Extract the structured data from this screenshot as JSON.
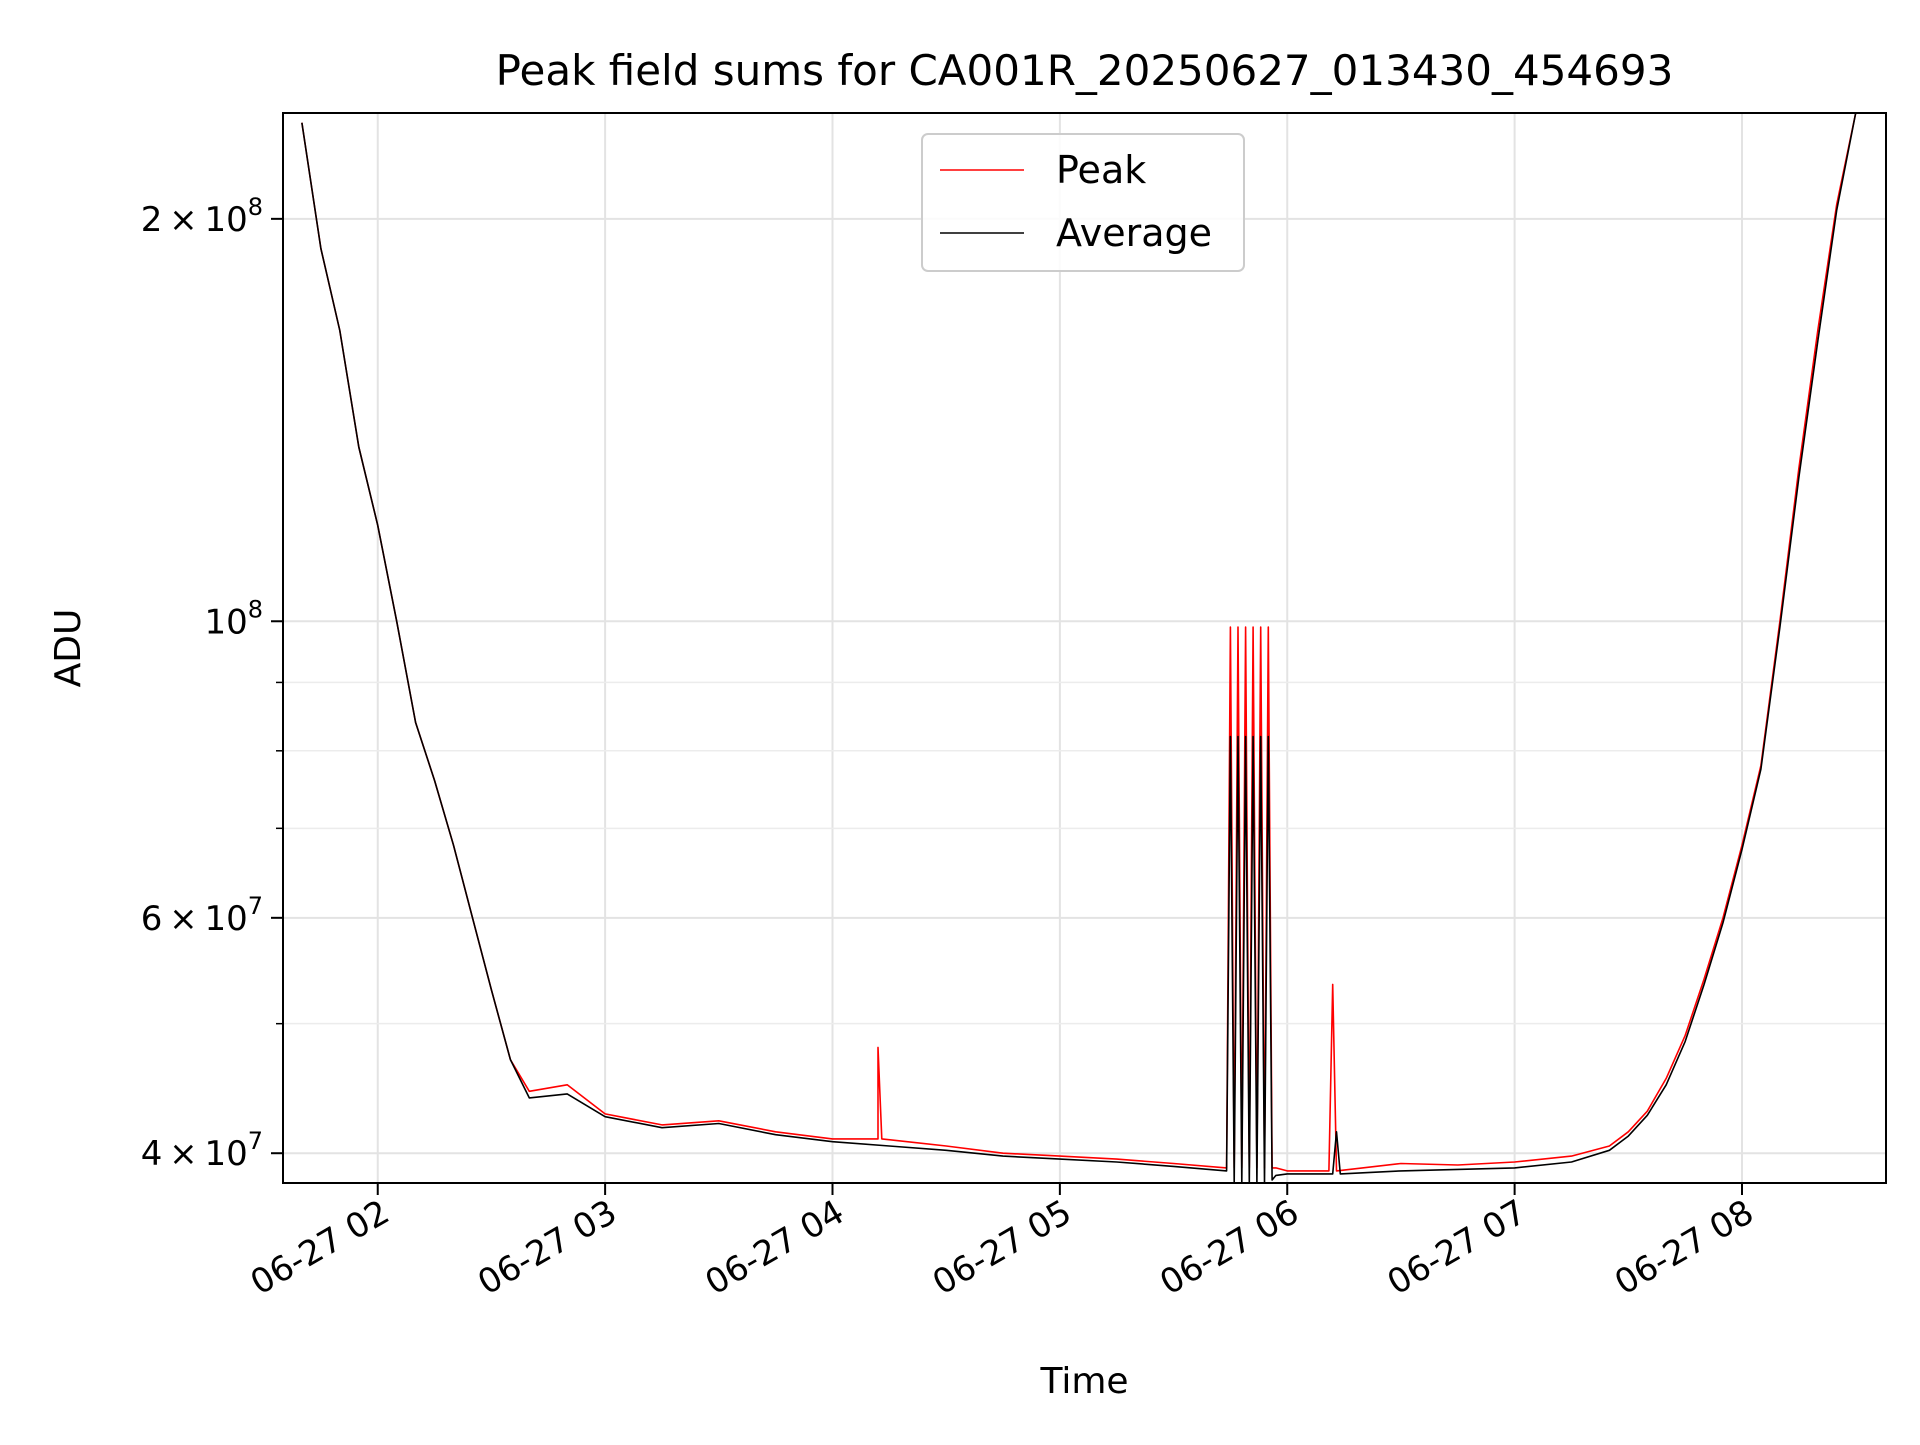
{
  "chart_data": {
    "type": "line",
    "title": "Peak field sums for CA001R_20250627_013430_454693",
    "xlabel": "Time",
    "ylabel": "ADU",
    "y_scale": "log",
    "ylim": [
      38000000,
      240000000
    ],
    "xlim": [
      "2025-06-27 01:35",
      "2025-06-27 08:38"
    ],
    "grid": true,
    "legend_position": "upper center",
    "x_ticks": [
      "06-27 02",
      "06-27 03",
      "06-27 04",
      "06-27 05",
      "06-27 06",
      "06-27 07",
      "06-27 08"
    ],
    "x_tick_times": [
      "2025-06-27 02:00",
      "2025-06-27 03:00",
      "2025-06-27 04:00",
      "2025-06-27 05:00",
      "2025-06-27 06:00",
      "2025-06-27 07:00",
      "2025-06-27 08:00"
    ],
    "y_major_ticks": [
      {
        "value": 200000000,
        "mantissa": "2",
        "exponent": "8"
      },
      {
        "value": 100000000,
        "mantissa": "",
        "exponent": "8"
      },
      {
        "value": 60000000,
        "mantissa": "6",
        "exponent": "7"
      },
      {
        "value": 40000000,
        "mantissa": "4",
        "exponent": "7"
      }
    ],
    "y_minor_ticks": [
      90000000,
      80000000,
      70000000,
      50000000
    ],
    "series": [
      {
        "name": "Peak",
        "color": "#ff0000",
        "x": [
          "2025-06-27 01:40",
          "2025-06-27 01:45",
          "2025-06-27 01:50",
          "2025-06-27 01:55",
          "2025-06-27 02:00",
          "2025-06-27 02:05",
          "2025-06-27 02:10",
          "2025-06-27 02:15",
          "2025-06-27 02:20",
          "2025-06-27 02:25",
          "2025-06-27 02:30",
          "2025-06-27 02:35",
          "2025-06-27 02:40",
          "2025-06-27 02:50",
          "2025-06-27 03:00",
          "2025-06-27 03:15",
          "2025-06-27 03:30",
          "2025-06-27 03:45",
          "2025-06-27 04:00",
          "2025-06-27 04:12",
          "2025-06-27 04:12",
          "2025-06-27 04:13",
          "2025-06-27 04:30",
          "2025-06-27 04:45",
          "2025-06-27 05:00",
          "2025-06-27 05:15",
          "2025-06-27 05:30",
          "2025-06-27 05:44",
          "2025-06-27 05:45",
          "2025-06-27 05:46",
          "2025-06-27 05:47",
          "2025-06-27 05:48",
          "2025-06-27 05:49",
          "2025-06-27 05:50",
          "2025-06-27 05:51",
          "2025-06-27 05:52",
          "2025-06-27 05:53",
          "2025-06-27 05:54",
          "2025-06-27 05:55",
          "2025-06-27 05:56",
          "2025-06-27 05:57",
          "2025-06-27 06:00",
          "2025-06-27 06:11",
          "2025-06-27 06:12",
          "2025-06-27 06:13",
          "2025-06-27 06:30",
          "2025-06-27 06:45",
          "2025-06-27 07:00",
          "2025-06-27 07:15",
          "2025-06-27 07:25",
          "2025-06-27 07:30",
          "2025-06-27 07:35",
          "2025-06-27 07:40",
          "2025-06-27 07:45",
          "2025-06-27 07:50",
          "2025-06-27 07:55",
          "2025-06-27 08:00",
          "2025-06-27 08:05",
          "2025-06-27 08:10",
          "2025-06-27 08:15",
          "2025-06-27 08:20",
          "2025-06-27 08:25",
          "2025-06-27 08:30"
        ],
        "y": [
          236000000,
          190000000,
          165000000,
          135000000,
          118000000,
          100000000,
          84000000,
          76000000,
          68000000,
          60000000,
          53000000,
          47000000,
          44500000,
          45000000,
          42800000,
          42000000,
          42300000,
          41500000,
          41000000,
          41000000,
          48000000,
          41000000,
          40500000,
          40000000,
          39800000,
          39600000,
          39300000,
          39000000,
          99000000,
          39000000,
          99000000,
          39000000,
          99000000,
          39000000,
          99000000,
          39000000,
          99000000,
          39000000,
          99000000,
          39000000,
          39000000,
          38800000,
          38800000,
          53500000,
          38800000,
          39300000,
          39200000,
          39400000,
          39800000,
          40500000,
          41500000,
          43000000,
          45500000,
          49000000,
          54000000,
          60000000,
          68000000,
          78000000,
          100000000,
          130000000,
          165000000,
          205000000,
          240000000
        ]
      },
      {
        "name": "Average",
        "color": "#000000",
        "x": [
          "2025-06-27 01:40",
          "2025-06-27 01:45",
          "2025-06-27 01:50",
          "2025-06-27 01:55",
          "2025-06-27 02:00",
          "2025-06-27 02:05",
          "2025-06-27 02:10",
          "2025-06-27 02:15",
          "2025-06-27 02:20",
          "2025-06-27 02:25",
          "2025-06-27 02:30",
          "2025-06-27 02:35",
          "2025-06-27 02:40",
          "2025-06-27 02:50",
          "2025-06-27 03:00",
          "2025-06-27 03:15",
          "2025-06-27 03:30",
          "2025-06-27 03:45",
          "2025-06-27 04:00",
          "2025-06-27 04:15",
          "2025-06-27 04:30",
          "2025-06-27 04:45",
          "2025-06-27 05:00",
          "2025-06-27 05:15",
          "2025-06-27 05:30",
          "2025-06-27 05:44",
          "2025-06-27 05:45",
          "2025-06-27 05:46",
          "2025-06-27 05:47",
          "2025-06-27 05:48",
          "2025-06-27 05:49",
          "2025-06-27 05:50",
          "2025-06-27 05:51",
          "2025-06-27 05:52",
          "2025-06-27 05:53",
          "2025-06-27 05:54",
          "2025-06-27 05:55",
          "2025-06-27 05:56",
          "2025-06-27 05:57",
          "2025-06-27 06:00",
          "2025-06-27 06:12",
          "2025-06-27 06:13",
          "2025-06-27 06:14",
          "2025-06-27 06:30",
          "2025-06-27 06:45",
          "2025-06-27 07:00",
          "2025-06-27 07:15",
          "2025-06-27 07:25",
          "2025-06-27 07:30",
          "2025-06-27 07:35",
          "2025-06-27 07:40",
          "2025-06-27 07:45",
          "2025-06-27 07:50",
          "2025-06-27 07:55",
          "2025-06-27 08:00",
          "2025-06-27 08:05",
          "2025-06-27 08:10",
          "2025-06-27 08:15",
          "2025-06-27 08:20",
          "2025-06-27 08:25",
          "2025-06-27 08:30"
        ],
        "y": [
          236000000,
          190000000,
          165000000,
          135000000,
          118000000,
          100000000,
          84000000,
          76000000,
          68000000,
          60000000,
          53000000,
          47000000,
          44000000,
          44300000,
          42600000,
          41800000,
          42100000,
          41300000,
          40800000,
          40500000,
          40200000,
          39800000,
          39600000,
          39400000,
          39100000,
          38800000,
          82000000,
          38000000,
          82000000,
          38000000,
          82000000,
          38000000,
          82000000,
          38000000,
          82000000,
          38000000,
          82000000,
          38200000,
          38500000,
          38600000,
          38600000,
          41500000,
          38600000,
          38800000,
          38900000,
          39000000,
          39400000,
          40200000,
          41200000,
          42700000,
          45000000,
          48500000,
          53500000,
          59500000,
          67500000,
          77500000,
          99000000,
          128000000,
          162000000,
          203000000,
          240000000
        ]
      }
    ]
  }
}
